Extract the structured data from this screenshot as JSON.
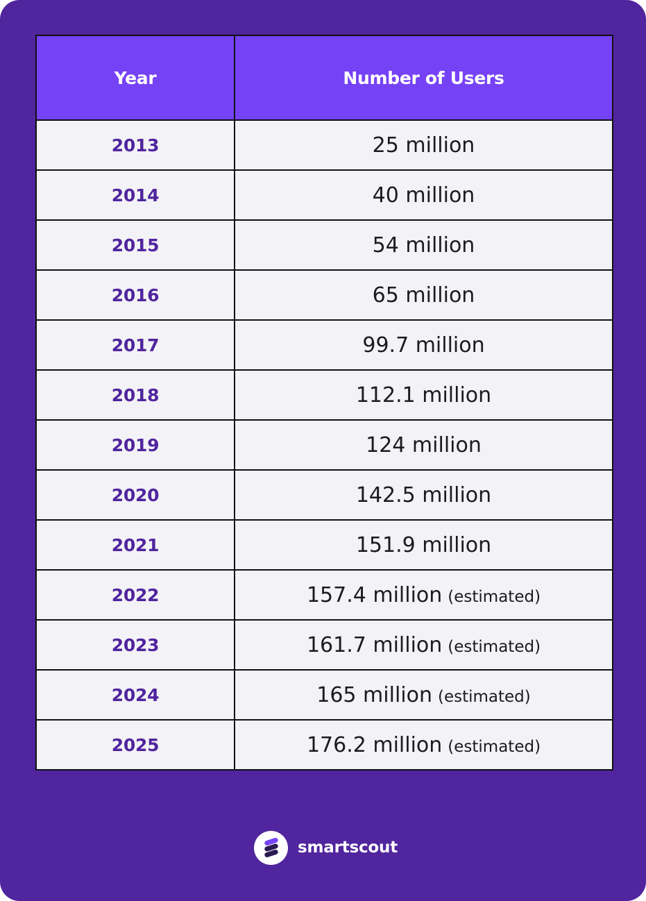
{
  "chart_data": {
    "type": "table",
    "columns": [
      "Year",
      "Number of Users"
    ],
    "rows": [
      {
        "year": "2013",
        "users": "25 million",
        "note": ""
      },
      {
        "year": "2014",
        "users": "40 million",
        "note": ""
      },
      {
        "year": "2015",
        "users": "54 million",
        "note": ""
      },
      {
        "year": "2016",
        "users": "65 million",
        "note": ""
      },
      {
        "year": "2017",
        "users": "99.7 million",
        "note": ""
      },
      {
        "year": "2018",
        "users": "112.1 million",
        "note": ""
      },
      {
        "year": "2019",
        "users": "124 million",
        "note": ""
      },
      {
        "year": "2020",
        "users": "142.5 million",
        "note": ""
      },
      {
        "year": "2021",
        "users": "151.9 million",
        "note": ""
      },
      {
        "year": "2022",
        "users": "157.4 million",
        "note": "(estimated)"
      },
      {
        "year": "2023",
        "users": "161.7 million",
        "note": "(estimated)"
      },
      {
        "year": "2024",
        "users": "165 million",
        "note": "(estimated)"
      },
      {
        "year": "2025",
        "users": "176.2 million",
        "note": "(estimated)"
      }
    ]
  },
  "brand": {
    "name": "smartscout",
    "logo_icon": "smartscout-logo-icon"
  },
  "colors": {
    "background": "#50259e",
    "header": "#7642f6",
    "cell": "#f3f2f6",
    "year_text": "#50259e",
    "value_text": "#1b1b1f",
    "logo_dark": "#2b1a52",
    "logo_accent": "#7642f6"
  }
}
